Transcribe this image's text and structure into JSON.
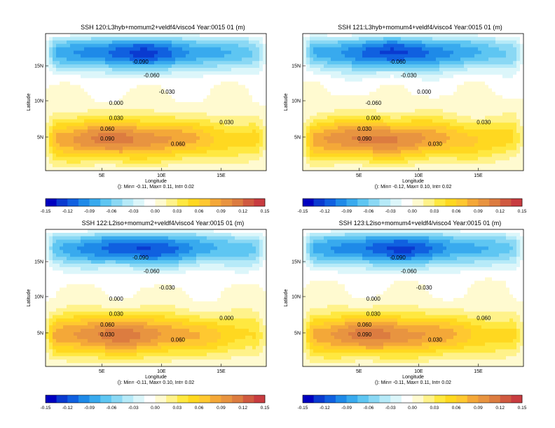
{
  "colorbar": {
    "ticks": [
      "-0.15",
      "-0.12",
      "-0.09",
      "-0.06",
      "-0.03",
      "0.00",
      "0.03",
      "0.06",
      "0.09",
      "0.12",
      "0.15"
    ],
    "colors": [
      "#0000c0",
      "#0a3ad0",
      "#1060e0",
      "#1e8ae8",
      "#38aaee",
      "#5ec6f2",
      "#8ad8f4",
      "#b6eaf8",
      "#dcf6fa",
      "#ffffff",
      "#fffad0",
      "#fff28a",
      "#ffe840",
      "#ffd820",
      "#ffc830",
      "#f4a838",
      "#e89440",
      "#dc7c40",
      "#d05a40",
      "#c83c40"
    ]
  },
  "chart_data": [
    {
      "type": "heatmap",
      "title": "SSH 120:L3hyb+momum2+veldf4/visco4 Year:0015 01 (m)",
      "xlabel": "Longitude",
      "ylabel": "Latitude",
      "xticks": [
        "5E",
        "10E",
        "15E"
      ],
      "yticks": [
        "5N",
        "10N",
        "15N"
      ],
      "contour_labels": [
        "-0.090",
        "-0.060",
        "-0.030",
        "0.000",
        "0.030",
        "0.060",
        "0.090",
        "0.030",
        "0.060"
      ],
      "stats": "(): Min= -0.11, Max= 0.11, Int= 0.02",
      "min": -0.11,
      "max": 0.11,
      "interval": 0.02
    },
    {
      "type": "heatmap",
      "title": "SSH 121:L3hyb+momum4+veldf4/visco4 Year:0015 01 (m)",
      "xlabel": "Longitude",
      "ylabel": "Latitude",
      "xticks": [
        "5E",
        "10E",
        "15E"
      ],
      "yticks": [
        "5N",
        "10N",
        "15N"
      ],
      "contour_labels": [
        "-0.060",
        "-0.030",
        "0.000",
        "-0.060",
        "0.000",
        "0.030",
        "0.090",
        "0.030",
        "0.030"
      ],
      "stats": "(): Min= -0.12, Max= 0.10, Int= 0.02",
      "min": -0.12,
      "max": 0.1,
      "interval": 0.02
    },
    {
      "type": "heatmap",
      "title": "SSH 122:L2iso+momum2+veldf4/visco4 Year:0015 01 (m)",
      "xlabel": "Longitude",
      "ylabel": "Latitude",
      "xticks": [
        "5E",
        "10E",
        "15E"
      ],
      "yticks": [
        "5N",
        "10N",
        "15N"
      ],
      "contour_labels": [
        "-0.090",
        "-0.060",
        "-0.030",
        "0.000",
        "0.030",
        "0.060",
        "0.030",
        "0.000",
        "0.060"
      ],
      "stats": "(): Min= -0.11, Max= 0.10, Int= 0.02",
      "min": -0.11,
      "max": 0.1,
      "interval": 0.02
    },
    {
      "type": "heatmap",
      "title": "SSH 123:L2iso+momum4+veldf4/visco4 Year:0015 01 (m)",
      "xlabel": "Longitude",
      "ylabel": "Latitude",
      "xticks": [
        "5E",
        "10E",
        "15E"
      ],
      "yticks": [
        "5N",
        "10N",
        "15N"
      ],
      "contour_labels": [
        "-0.090",
        "-0.060",
        "-0.030",
        "0.000",
        "0.030",
        "0.060",
        "0.090",
        "0.060",
        "0.030"
      ],
      "stats": "(): Min= -0.11, Max= 0.11, Int= 0.02",
      "min": -0.11,
      "max": 0.11,
      "interval": 0.02
    }
  ]
}
